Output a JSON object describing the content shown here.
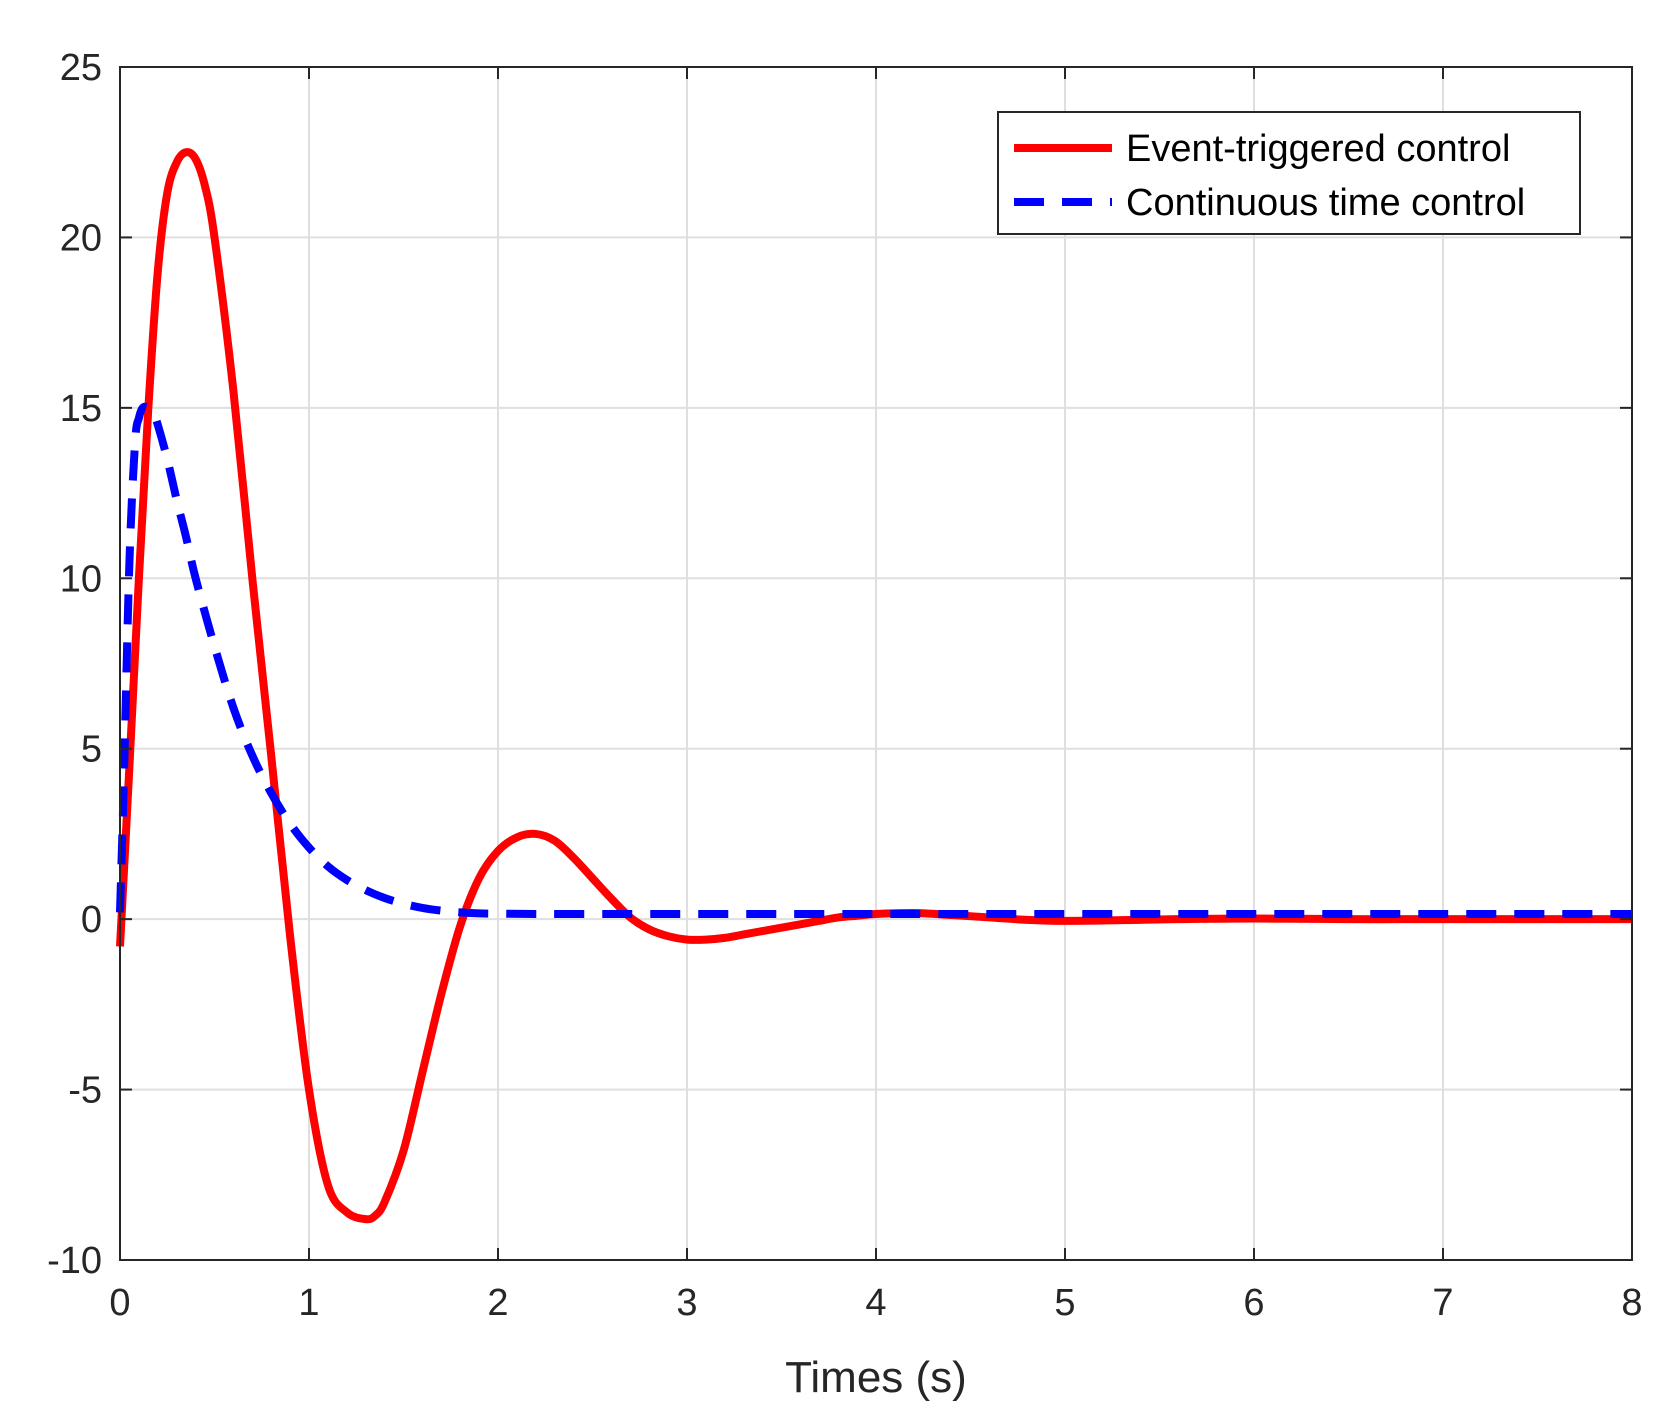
{
  "chart_data": {
    "type": "line",
    "title": "",
    "xlabel": "Times (s)",
    "ylabel": "",
    "xlim": [
      0,
      8
    ],
    "ylim": [
      -10,
      25
    ],
    "xticks": [
      0,
      1,
      2,
      3,
      4,
      5,
      6,
      7,
      8
    ],
    "yticks": [
      -10,
      -5,
      0,
      5,
      10,
      15,
      20,
      25
    ],
    "xtick_labels": [
      "0",
      "1",
      "2",
      "3",
      "4",
      "5",
      "6",
      "7",
      "8"
    ],
    "ytick_labels": [
      "-10",
      "-5",
      "0",
      "5",
      "10",
      "15",
      "20",
      "25"
    ],
    "grid": true,
    "legend_position": "top-right",
    "series": [
      {
        "name": "Event-triggered control",
        "color": "#ff0000",
        "style": "solid",
        "x": [
          0,
          0.05,
          0.1,
          0.15,
          0.2,
          0.25,
          0.3,
          0.35,
          0.4,
          0.45,
          0.5,
          0.6,
          0.7,
          0.8,
          0.9,
          1.0,
          1.1,
          1.2,
          1.3,
          1.35,
          1.4,
          1.5,
          1.6,
          1.7,
          1.8,
          1.9,
          2.0,
          2.1,
          2.2,
          2.3,
          2.4,
          2.5,
          2.6,
          2.7,
          2.8,
          2.9,
          3.0,
          3.1,
          3.2,
          3.3,
          3.4,
          3.5,
          3.6,
          3.7,
          3.8,
          3.9,
          4.0,
          4.2,
          4.4,
          4.6,
          4.8,
          5.0,
          5.3,
          5.6,
          6.0,
          6.5,
          7.0,
          7.5,
          8.0
        ],
        "y": [
          -0.8,
          4.5,
          10.0,
          15.0,
          19.0,
          21.3,
          22.2,
          22.5,
          22.3,
          21.5,
          20.0,
          15.5,
          10.0,
          4.8,
          -0.5,
          -5.0,
          -7.8,
          -8.6,
          -8.8,
          -8.7,
          -8.3,
          -6.8,
          -4.5,
          -2.2,
          -0.2,
          1.2,
          2.0,
          2.4,
          2.5,
          2.3,
          1.8,
          1.2,
          0.6,
          0.05,
          -0.3,
          -0.5,
          -0.6,
          -0.6,
          -0.55,
          -0.45,
          -0.35,
          -0.25,
          -0.15,
          -0.05,
          0.05,
          0.1,
          0.15,
          0.18,
          0.12,
          0.05,
          -0.02,
          -0.05,
          -0.03,
          0.0,
          0.02,
          0.0,
          0.0,
          0.0,
          0.0
        ]
      },
      {
        "name": "Continuous time control",
        "color": "#0000ff",
        "style": "dashed",
        "x": [
          0,
          0.02,
          0.05,
          0.08,
          0.1,
          0.12,
          0.15,
          0.18,
          0.2,
          0.25,
          0.3,
          0.35,
          0.4,
          0.5,
          0.6,
          0.7,
          0.8,
          0.9,
          1.0,
          1.1,
          1.2,
          1.3,
          1.4,
          1.5,
          1.6,
          1.7,
          1.8,
          1.9,
          2.0,
          2.2,
          2.5,
          3.0,
          4.0,
          5.0,
          6.0,
          7.0,
          8.0
        ],
        "y": [
          0.2,
          4.0,
          10.5,
          14.0,
          14.7,
          15.0,
          15.0,
          14.8,
          14.5,
          13.5,
          12.3,
          11.2,
          10.0,
          8.0,
          6.2,
          4.8,
          3.7,
          2.8,
          2.1,
          1.55,
          1.15,
          0.85,
          0.62,
          0.45,
          0.33,
          0.25,
          0.2,
          0.17,
          0.16,
          0.15,
          0.15,
          0.15,
          0.15,
          0.15,
          0.15,
          0.15,
          0.15
        ]
      }
    ]
  }
}
